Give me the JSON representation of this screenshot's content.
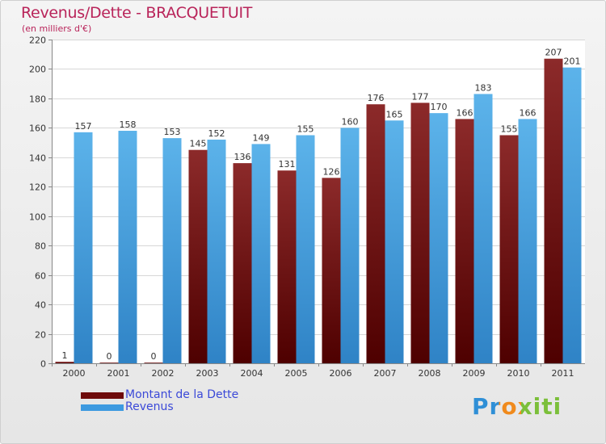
{
  "colors": {
    "title": "#b9245a",
    "dette": "#6e0b0b",
    "revenus": "#3d9ae0",
    "legend_text": "#3b49d8",
    "axis_text": "#333333"
  },
  "header": {
    "title": "Revenus/Dette - BRACQUETUIT",
    "subtitle": "(en milliers d'€)"
  },
  "legend": {
    "dette_label": "Montant de la Dette",
    "revenus_label": "Revenus"
  },
  "brand": {
    "text": "Proxiti"
  },
  "chart_data": {
    "type": "bar",
    "title": "Revenus/Dette - BRACQUETUIT",
    "subtitle": "(en milliers d'€)",
    "xlabel": "",
    "ylabel": "",
    "ylim": [
      0,
      220
    ],
    "yticks": [
      0,
      20,
      40,
      60,
      80,
      100,
      120,
      140,
      160,
      180,
      200,
      220
    ],
    "grid": true,
    "legend_position": "bottom-left",
    "categories": [
      "2000",
      "2001",
      "2002",
      "2003",
      "2004",
      "2005",
      "2006",
      "2007",
      "2008",
      "2009",
      "2010",
      "2011"
    ],
    "series": [
      {
        "name": "Montant de la Dette",
        "values": [
          1,
          0,
          0,
          145,
          136,
          131,
          126,
          176,
          177,
          166,
          155,
          207
        ]
      },
      {
        "name": "Revenus",
        "values": [
          157,
          158,
          153,
          152,
          149,
          155,
          160,
          165,
          170,
          183,
          166,
          201
        ]
      }
    ]
  }
}
